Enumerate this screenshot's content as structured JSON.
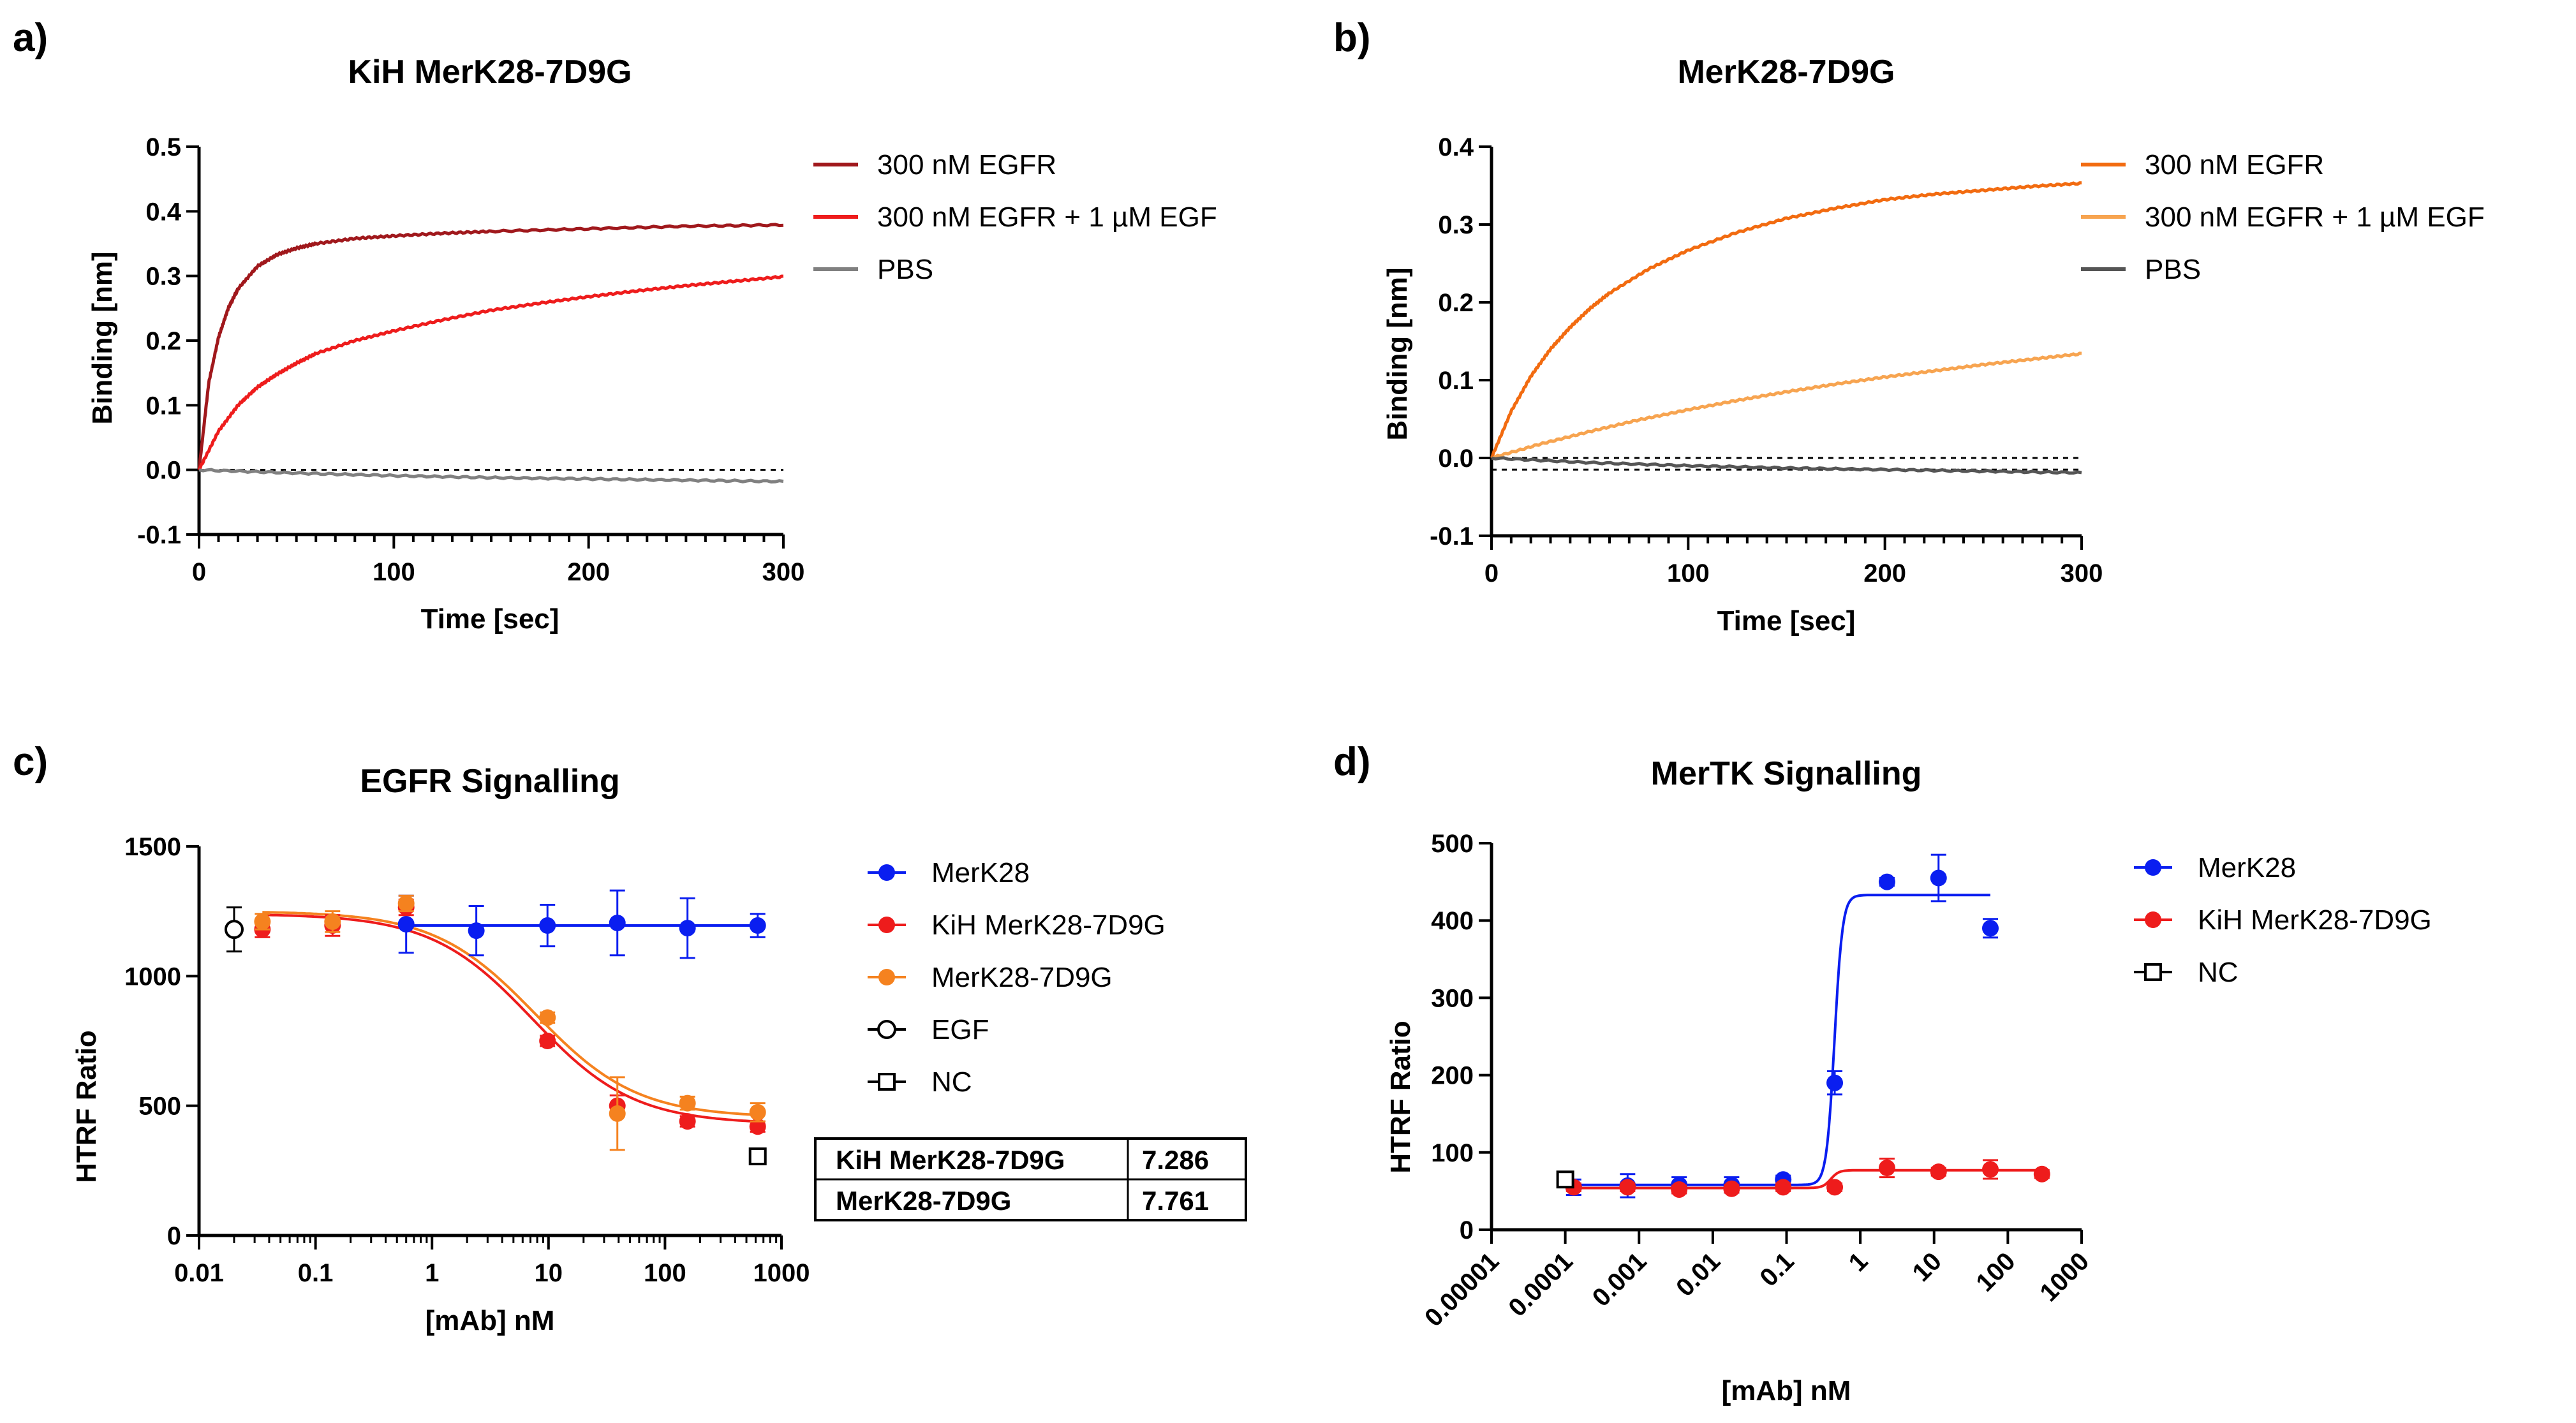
{
  "figure": {
    "panel_labels": [
      "a)",
      "b)",
      "c)",
      "d)"
    ],
    "colors": {
      "dark_red": "#a0181c",
      "red": "#ee1c1c",
      "orange": "#f26b10",
      "light_orange": "#f7a450",
      "grey": "#808080",
      "dark_grey": "#555555",
      "blue": "#0a1ef0",
      "ec_orange": "#f5821f",
      "black": "#000000"
    }
  },
  "chart_data": [
    {
      "panel": "a)",
      "type": "line",
      "title": "KiH MerK28-7D9G",
      "xlabel": "Time [sec]",
      "ylabel": "Binding [nm]",
      "xlim": [
        0,
        300
      ],
      "ylim": [
        -0.1,
        0.5
      ],
      "xticks": [
        0,
        100,
        200,
        300
      ],
      "yticks": [
        -0.1,
        0.0,
        0.1,
        0.2,
        0.3,
        0.4,
        0.5
      ],
      "ytick_labels": [
        "-0.1",
        "0.0",
        "0.1",
        "0.2",
        "0.3",
        "0.4",
        "0.5"
      ],
      "reference_lines": [
        0.0
      ],
      "legend": "right",
      "series": [
        {
          "name": "300 nM EGFR",
          "color": "#a0181c",
          "x": [
            0,
            5,
            10,
            15,
            20,
            30,
            40,
            50,
            60,
            80,
            100,
            125,
            150,
            200,
            250,
            300
          ],
          "values": [
            0,
            0.135,
            0.205,
            0.25,
            0.28,
            0.315,
            0.333,
            0.343,
            0.35,
            0.358,
            0.362,
            0.366,
            0.369,
            0.373,
            0.377,
            0.379
          ]
        },
        {
          "name": "300 nM EGFR + 1 µM EGF",
          "color": "#ee1c1c",
          "x": [
            0,
            10,
            20,
            30,
            40,
            50,
            60,
            80,
            100,
            125,
            150,
            175,
            200,
            225,
            250,
            275,
            300
          ],
          "values": [
            0,
            0.06,
            0.1,
            0.128,
            0.148,
            0.165,
            0.18,
            0.2,
            0.215,
            0.232,
            0.247,
            0.258,
            0.268,
            0.277,
            0.285,
            0.292,
            0.299
          ]
        },
        {
          "name": "PBS",
          "color": "#808080",
          "x": [
            0,
            50,
            100,
            150,
            200,
            250,
            300
          ],
          "values": [
            0,
            -0.005,
            -0.009,
            -0.012,
            -0.014,
            -0.016,
            -0.018
          ]
        }
      ]
    },
    {
      "panel": "b)",
      "type": "line",
      "title": "MerK28-7D9G",
      "xlabel": "Time [sec]",
      "ylabel": "Binding [nm]",
      "xlim": [
        0,
        300
      ],
      "ylim": [
        -0.1,
        0.4
      ],
      "xticks": [
        0,
        100,
        200,
        300
      ],
      "yticks": [
        -0.1,
        0.0,
        0.1,
        0.2,
        0.3,
        0.4
      ],
      "ytick_labels": [
        "-0.1",
        "0.0",
        "0.1",
        "0.2",
        "0.3",
        "0.4"
      ],
      "reference_lines": [
        0.0,
        -0.015
      ],
      "legend": "right",
      "series": [
        {
          "name": "300 nM EGFR",
          "color": "#f26b10",
          "x": [
            0,
            10,
            20,
            30,
            40,
            50,
            60,
            80,
            100,
            125,
            150,
            175,
            200,
            225,
            250,
            275,
            300
          ],
          "values": [
            0,
            0.06,
            0.105,
            0.14,
            0.168,
            0.192,
            0.212,
            0.243,
            0.267,
            0.29,
            0.308,
            0.321,
            0.332,
            0.339,
            0.344,
            0.349,
            0.353
          ]
        },
        {
          "name": "300 nM EGFR + 1 µM EGF",
          "color": "#f7a450",
          "x": [
            0,
            25,
            50,
            75,
            100,
            125,
            150,
            175,
            200,
            225,
            250,
            275,
            300
          ],
          "values": [
            0,
            0.018,
            0.034,
            0.049,
            0.062,
            0.074,
            0.085,
            0.095,
            0.104,
            0.112,
            0.12,
            0.127,
            0.134
          ]
        },
        {
          "name": "PBS",
          "color": "#555555",
          "x": [
            0,
            50,
            100,
            150,
            200,
            250,
            300
          ],
          "values": [
            0,
            -0.006,
            -0.01,
            -0.013,
            -0.015,
            -0.017,
            -0.019
          ]
        }
      ]
    },
    {
      "panel": "c)",
      "type": "scatter",
      "title": "EGFR Signalling",
      "xlabel": "[mAb] nM",
      "ylabel": "HTRF Ratio",
      "xscale": "log",
      "xlim": [
        0.01,
        1000
      ],
      "ylim": [
        0,
        1500
      ],
      "xticks": [
        0.01,
        0.1,
        1,
        10,
        100,
        1000
      ],
      "xtick_labels": [
        "0.01",
        "0.1",
        "1",
        "10",
        "100",
        "1000"
      ],
      "yticks": [
        0,
        500,
        1000,
        1500
      ],
      "ytick_labels": [
        "0",
        "500",
        "1000",
        "1500"
      ],
      "legend": "right",
      "series": [
        {
          "name": "MerK28",
          "color": "#0a1ef0",
          "marker": "circle",
          "x": [
            0.6,
            2.4,
            9.8,
            39,
            156,
            625
          ],
          "values": [
            1200,
            1175,
            1195,
            1205,
            1185,
            1195
          ],
          "errors": [
            110,
            95,
            80,
            125,
            115,
            45
          ],
          "fit": {
            "kind": "flat",
            "value": 1195
          }
        },
        {
          "name": "KiH MerK28-7D9G",
          "color": "#ee1c1c",
          "marker": "circle",
          "x": [
            0.035,
            0.14,
            0.6,
            9.8,
            39,
            156,
            625
          ],
          "values": [
            1180,
            1195,
            1265,
            750,
            500,
            440,
            420
          ],
          "errors": [
            30,
            40,
            30,
            20,
            40,
            20,
            20
          ],
          "fit": {
            "kind": "sigmoid",
            "bottom": 430,
            "top": 1240,
            "logEC50": 0.862,
            "hill": 1
          }
        },
        {
          "name": "MerK28-7D9G",
          "color": "#f5821f",
          "marker": "circle",
          "x": [
            0.035,
            0.14,
            0.6,
            9.8,
            39,
            156,
            625
          ],
          "values": [
            1210,
            1210,
            1280,
            840,
            470,
            510,
            475
          ],
          "errors": [
            30,
            40,
            30,
            20,
            140,
            25,
            35
          ],
          "fit": {
            "kind": "sigmoid",
            "bottom": 455,
            "top": 1250,
            "logEC50": 0.89,
            "hill": 1
          }
        },
        {
          "name": "EGF",
          "color": "#000000",
          "marker": "open-circle",
          "x": [
            0.02
          ],
          "values": [
            1180
          ],
          "errors": [
            85
          ]
        },
        {
          "name": "NC",
          "color": "#000000",
          "marker": "open-square",
          "x": [
            625
          ],
          "values": [
            305
          ],
          "errors": [
            0
          ]
        }
      ],
      "table": {
        "rows": [
          {
            "label": "KiH MerK28-7D9G",
            "value": "7.286"
          },
          {
            "label": "MerK28-7D9G",
            "value": "7.761"
          }
        ]
      }
    },
    {
      "panel": "d)",
      "type": "scatter",
      "title": "MerTK Signalling",
      "xlabel": "[mAb] nM",
      "ylabel": "HTRF Ratio",
      "xscale": "log",
      "xlim": [
        1e-05,
        1000
      ],
      "ylim": [
        0,
        500
      ],
      "xticks": [
        1e-05,
        0.0001,
        0.001,
        0.01,
        0.1,
        1,
        10,
        100,
        1000
      ],
      "xtick_labels": [
        "0.00001",
        "0.0001",
        "0.001",
        "0.01",
        "0.1",
        "1",
        "10",
        "100",
        "1000"
      ],
      "yticks": [
        0,
        100,
        200,
        300,
        400,
        500
      ],
      "ytick_labels": [
        "0",
        "100",
        "200",
        "300",
        "400",
        "500"
      ],
      "legend": "right",
      "series": [
        {
          "name": "MerK28",
          "color": "#0a1ef0",
          "marker": "circle",
          "x": [
            0.00013,
            0.0007,
            0.0035,
            0.018,
            0.09,
            0.45,
            2.3,
            11.5,
            58
          ],
          "values": [
            55,
            57,
            58,
            58,
            65,
            190,
            450,
            455,
            390
          ],
          "errors": [
            10,
            15,
            10,
            10,
            5,
            15,
            5,
            30,
            12
          ],
          "fit": {
            "kind": "sigmoid",
            "bottom": 58,
            "top": 433,
            "logEC50": -0.35,
            "hill": 8
          }
        },
        {
          "name": "KiH MerK28-7D9G",
          "color": "#ee1c1c",
          "marker": "circle",
          "x": [
            0.00013,
            0.0007,
            0.0035,
            0.018,
            0.09,
            0.45,
            2.3,
            11.5,
            58,
            290
          ],
          "values": [
            55,
            55,
            52,
            53,
            55,
            55,
            80,
            75,
            78,
            72
          ],
          "errors": [
            5,
            5,
            5,
            5,
            5,
            5,
            12,
            5,
            12,
            5
          ],
          "fit": {
            "kind": "sigmoid",
            "bottom": 54,
            "top": 77,
            "logEC50": -0.4,
            "hill": 8
          }
        },
        {
          "name": "NC",
          "color": "#000000",
          "marker": "open-square",
          "x": [
            0.0001
          ],
          "values": [
            65
          ],
          "errors": [
            0
          ]
        }
      ]
    }
  ]
}
